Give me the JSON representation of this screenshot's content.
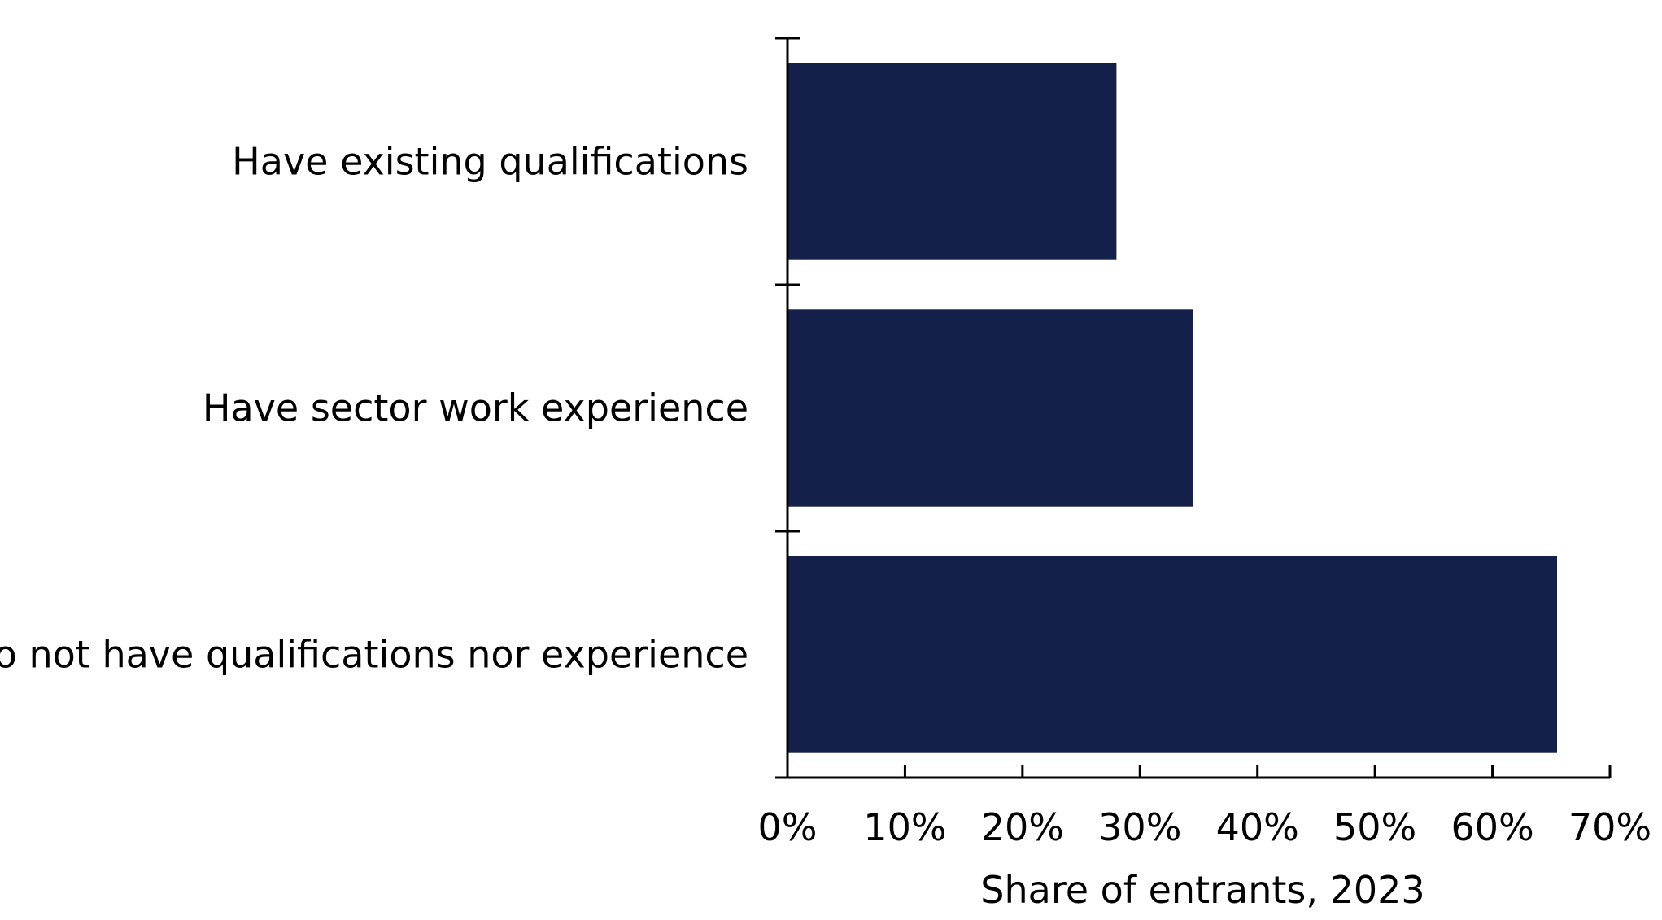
{
  "chart_data": {
    "type": "bar",
    "orientation": "horizontal",
    "categories": [
      "Have existing qualifications",
      "Have sector work experience",
      "Do not have qualifications nor experience"
    ],
    "values": [
      28,
      34.5,
      65.5
    ],
    "value_unit": "%",
    "xlabel": "Share of entrants, 2023",
    "ylabel": "",
    "xlim": [
      0,
      70
    ],
    "xticks": [
      0,
      10,
      20,
      30,
      40,
      50,
      60,
      70
    ],
    "xtick_labels": [
      "0%",
      "10%",
      "20%",
      "30%",
      "40%",
      "50%",
      "60%",
      "70%"
    ],
    "grid": false,
    "legend": "none",
    "bar_color": "#15204a"
  }
}
